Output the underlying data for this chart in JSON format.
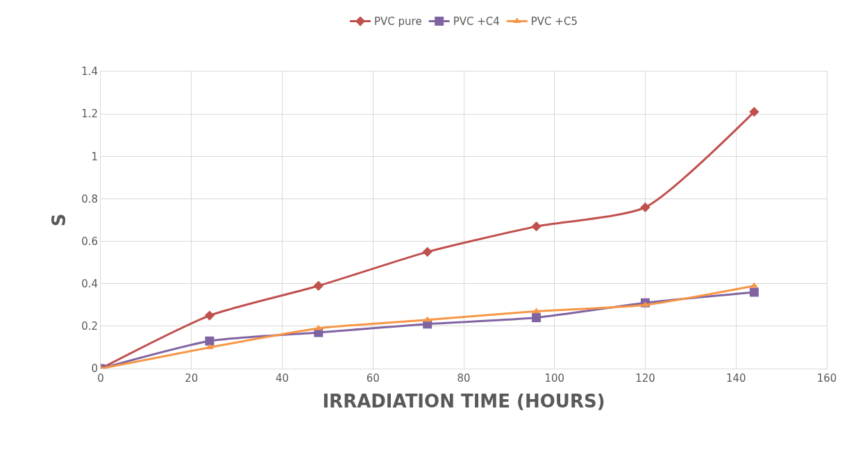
{
  "chart_data": {
    "type": "line",
    "xlabel": "IRRADIATION TIME (HOURS)",
    "ylabel": "S",
    "x": [
      0,
      24,
      48,
      72,
      96,
      120,
      144
    ],
    "series": [
      {
        "name": "PVC pure",
        "color": "#c0504d",
        "marker": "diamond",
        "values": [
          0,
          0.25,
          0.39,
          0.55,
          0.67,
          0.76,
          1.21
        ]
      },
      {
        "name": "PVC +C4",
        "color": "#8064a2",
        "marker": "square",
        "values": [
          0,
          0.13,
          0.17,
          0.21,
          0.24,
          0.31,
          0.36
        ]
      },
      {
        "name": "PVC +C5",
        "color": "#f79646",
        "marker": "triangle",
        "values": [
          0,
          0.1,
          0.19,
          0.23,
          0.27,
          0.3,
          0.39
        ]
      }
    ],
    "xlim": [
      0,
      160
    ],
    "xticks": [
      0,
      20,
      40,
      60,
      80,
      100,
      120,
      140,
      160
    ],
    "ylim": [
      0,
      1.4
    ],
    "yticks": [
      0,
      {
        "value": 0.2,
        "label": "0.2"
      },
      {
        "value": 0.4,
        "label": "0.4"
      },
      {
        "value": 0.6,
        "label": "0.6"
      },
      {
        "value": 0.8,
        "label": "0.8"
      },
      1,
      {
        "value": 1.2,
        "label": "1.2"
      },
      {
        "value": 1.4,
        "label": "1.4"
      }
    ],
    "grid": true,
    "legend": "top",
    "line_style": "solid"
  }
}
